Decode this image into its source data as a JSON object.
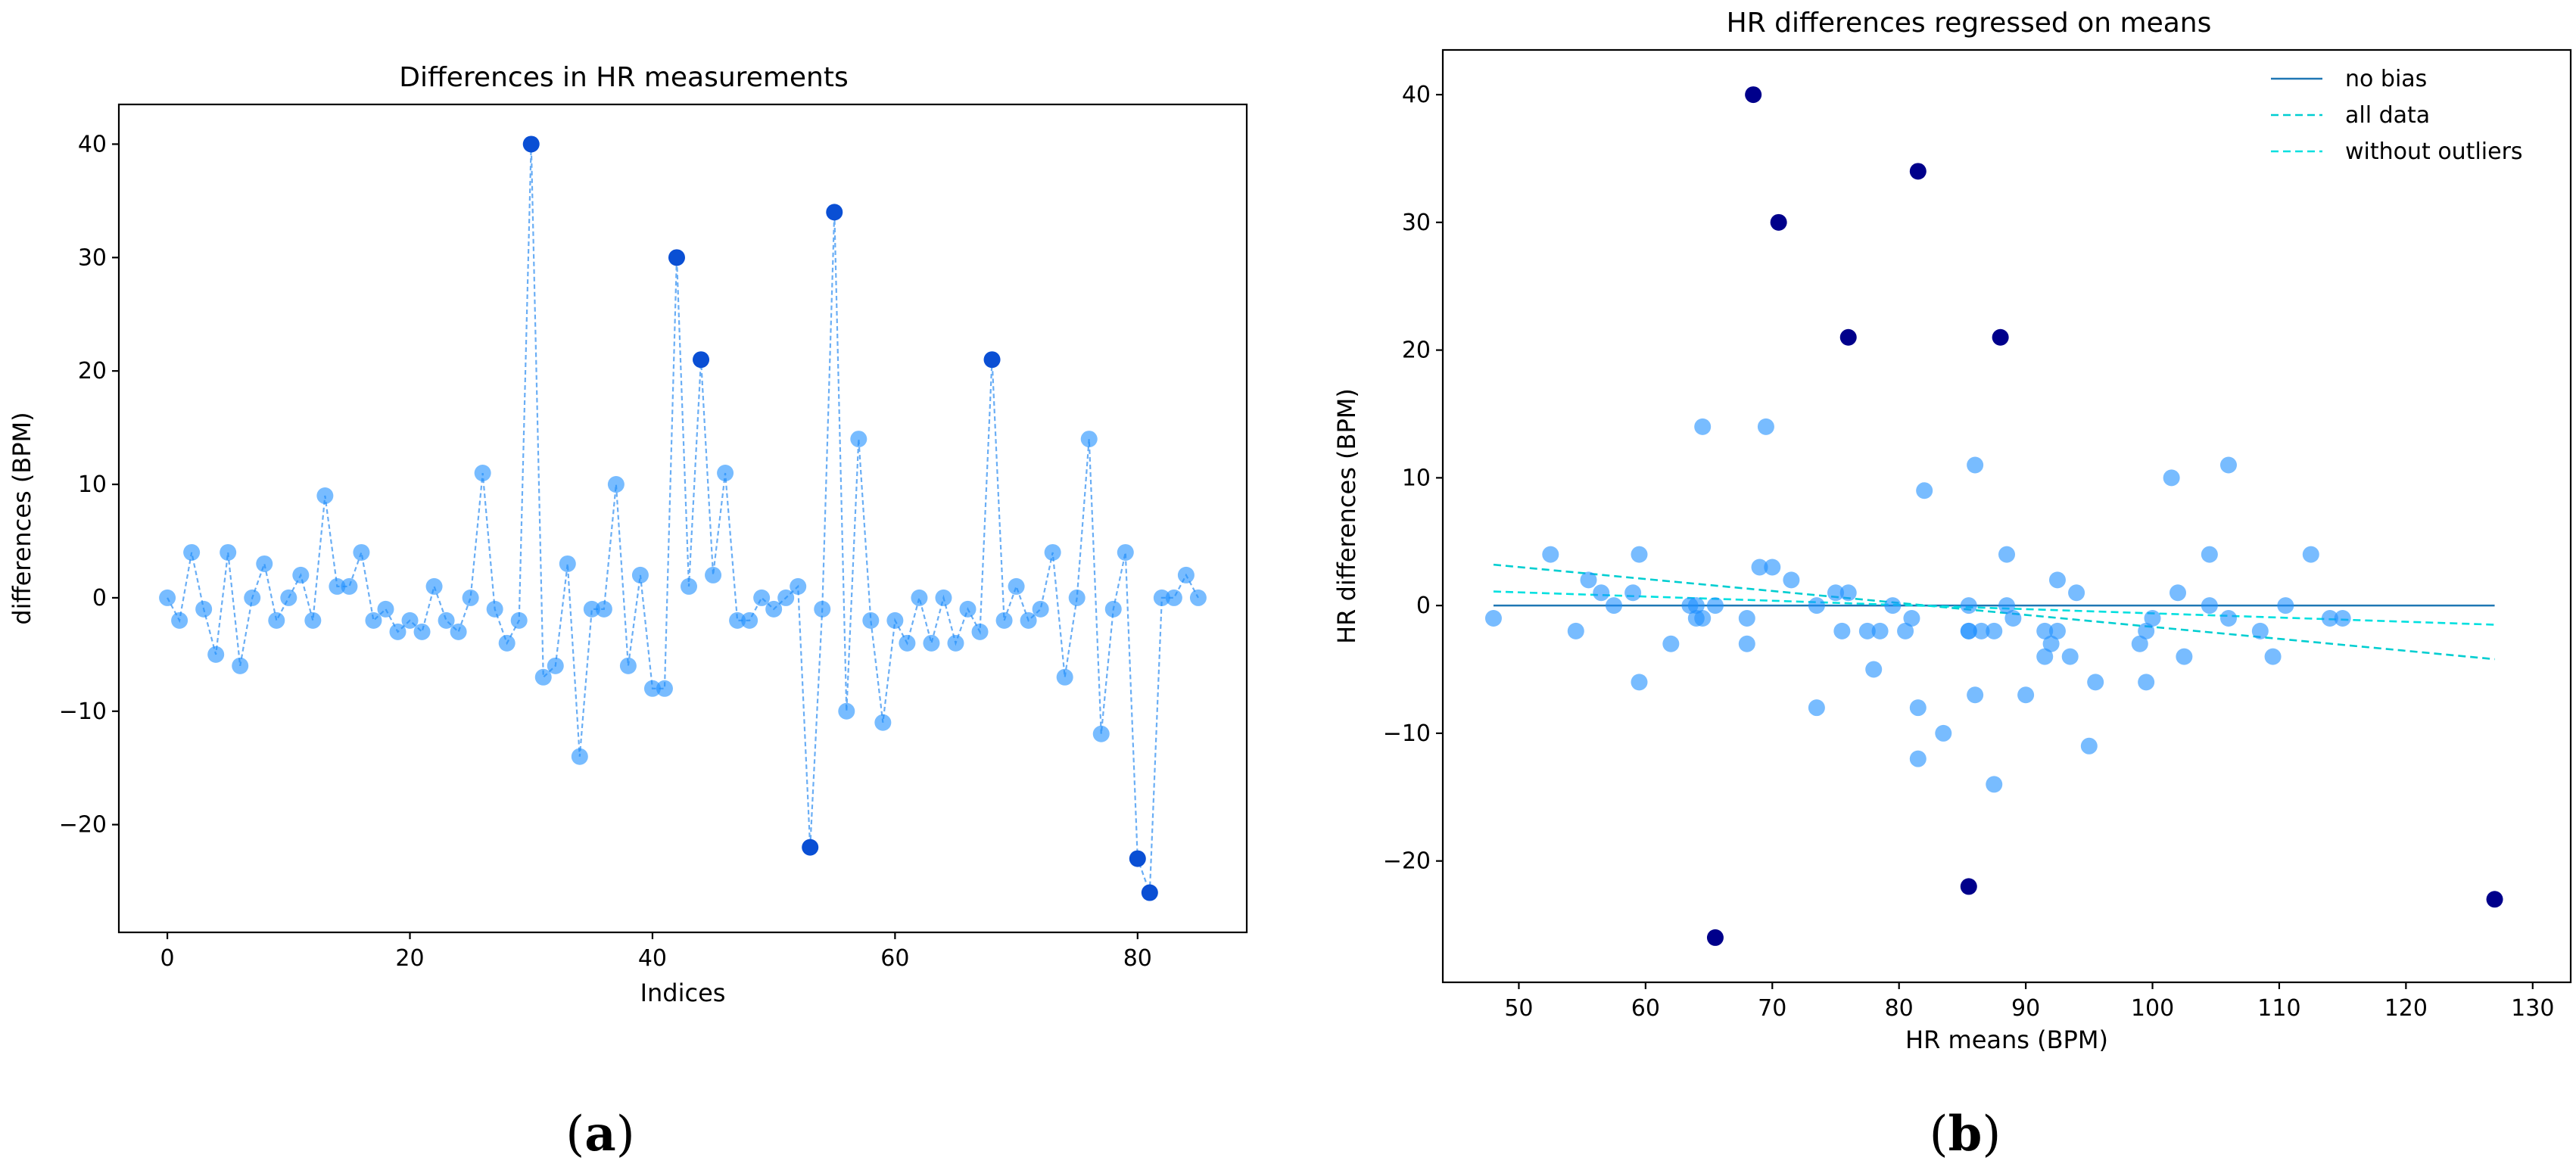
{
  "panel_labels": {
    "a": "(a)",
    "b": "(b)",
    "a_letter": "a",
    "b_letter": "b"
  },
  "colors": {
    "point": "#1e90ff",
    "point_highlight": "#0a4fd4",
    "outlier_b": "#00008b",
    "line_a": "#6aaef5",
    "no_bias": "#1f77b4",
    "all_data": "#00ced1",
    "without_outliers": "#00e0e0"
  },
  "chart_data": [
    {
      "type": "line",
      "title": "Differences in HR measurements",
      "xlabel": "Indices",
      "ylabel": "differences (BPM)",
      "xlim": [
        -4,
        89
      ],
      "ylim": [
        -29.5,
        43.5
      ],
      "xticks": [
        0,
        20,
        40,
        60,
        80
      ],
      "xtick_labels": [
        "0",
        "20",
        "40",
        "60",
        "80"
      ],
      "yticks": [
        -20,
        -10,
        0,
        10,
        20,
        30,
        40
      ],
      "ytick_labels": [
        "−20",
        "−10",
        "0",
        "10",
        "20",
        "30",
        "40"
      ],
      "x": [
        0,
        1,
        2,
        3,
        4,
        5,
        6,
        7,
        8,
        9,
        10,
        11,
        12,
        13,
        14,
        15,
        16,
        17,
        18,
        19,
        20,
        21,
        22,
        23,
        24,
        25,
        26,
        27,
        28,
        29,
        30,
        31,
        32,
        33,
        34,
        35,
        36,
        37,
        38,
        39,
        40,
        41,
        42,
        43,
        44,
        45,
        46,
        47,
        48,
        49,
        50,
        51,
        52,
        53,
        54,
        55,
        56,
        57,
        58,
        59,
        60,
        61,
        62,
        63,
        64,
        65,
        66,
        67,
        68,
        69,
        70,
        71,
        72,
        73,
        74,
        75,
        76,
        77,
        78,
        79,
        80,
        81,
        82,
        83,
        84,
        85
      ],
      "values": [
        0,
        -2,
        4,
        -1,
        -5,
        4,
        -6,
        0,
        3,
        -2,
        0,
        2,
        -2,
        9,
        1,
        1,
        4,
        -2,
        -1,
        -3,
        -2,
        -3,
        1,
        -2,
        -3,
        0,
        11,
        -1,
        -4,
        -2,
        40,
        -7,
        -6,
        3,
        -14,
        -1,
        -1,
        10,
        -6,
        2,
        -8,
        -8,
        30,
        1,
        21,
        2,
        11,
        -2,
        -2,
        0,
        -1,
        0,
        1,
        -22,
        -1,
        34,
        -10,
        14,
        -2,
        -11,
        -2,
        -4,
        0,
        -4,
        0,
        -4,
        -1,
        -3,
        21,
        -2,
        1,
        -2,
        -1,
        4,
        -7,
        0,
        14,
        -12,
        -1,
        4,
        -23,
        -26,
        0,
        0,
        2,
        0
      ],
      "highlight_indices": [
        30,
        42,
        44,
        53,
        55,
        68,
        80,
        81
      ]
    },
    {
      "type": "scatter",
      "title": "HR differences regressed on means",
      "xlabel": "HR means (BPM)",
      "ylabel": "HR differences (BPM)",
      "xlim": [
        44,
        133
      ],
      "ylim": [
        -29.5,
        43.5
      ],
      "xticks": [
        50,
        60,
        70,
        80,
        90,
        100,
        110,
        120,
        130
      ],
      "xtick_labels": [
        "50",
        "60",
        "70",
        "80",
        "90",
        "100",
        "110",
        "120",
        "130"
      ],
      "yticks": [
        -20,
        -10,
        0,
        10,
        20,
        30,
        40
      ],
      "ytick_labels": [
        "−20",
        "−10",
        "0",
        "10",
        "20",
        "30",
        "40"
      ],
      "points": [
        [
          48,
          -1
        ],
        [
          52.5,
          4
        ],
        [
          54.5,
          -2
        ],
        [
          55.5,
          2
        ],
        [
          56.5,
          1
        ],
        [
          57.5,
          0
        ],
        [
          59,
          1
        ],
        [
          59.5,
          4
        ],
        [
          59.5,
          -6
        ],
        [
          62,
          -3
        ],
        [
          63.5,
          0
        ],
        [
          64,
          -1
        ],
        [
          64,
          0
        ],
        [
          64.5,
          14
        ],
        [
          64.5,
          -1
        ],
        [
          65.5,
          0
        ],
        [
          68,
          -3
        ],
        [
          68,
          -1
        ],
        [
          69,
          3
        ],
        [
          69.5,
          14
        ],
        [
          70,
          3
        ],
        [
          71.5,
          2
        ],
        [
          73.5,
          0
        ],
        [
          73.5,
          -8
        ],
        [
          75,
          1
        ],
        [
          75.5,
          -2
        ],
        [
          76,
          1
        ],
        [
          77.5,
          -2
        ],
        [
          78,
          -5
        ],
        [
          78.5,
          -2
        ],
        [
          79.5,
          0
        ],
        [
          80.5,
          -2
        ],
        [
          81,
          -1
        ],
        [
          81.5,
          -8
        ],
        [
          81.5,
          -12
        ],
        [
          82,
          9
        ],
        [
          83.5,
          -10
        ],
        [
          85.5,
          0
        ],
        [
          85.5,
          -2
        ],
        [
          85.5,
          -2
        ],
        [
          86,
          11
        ],
        [
          86,
          -7
        ],
        [
          86.5,
          -2
        ],
        [
          87.5,
          -14
        ],
        [
          87.5,
          -2
        ],
        [
          88.5,
          4
        ],
        [
          88.5,
          0
        ],
        [
          89,
          -1
        ],
        [
          90,
          -7
        ],
        [
          91.5,
          -4
        ],
        [
          91.5,
          -2
        ],
        [
          92,
          -3
        ],
        [
          92.5,
          2
        ],
        [
          92.5,
          -2
        ],
        [
          93.5,
          -4
        ],
        [
          94,
          1
        ],
        [
          95,
          -11
        ],
        [
          95.5,
          -6
        ],
        [
          99,
          -3
        ],
        [
          99.5,
          -2
        ],
        [
          99.5,
          -6
        ],
        [
          100,
          -1
        ],
        [
          101.5,
          10
        ],
        [
          102,
          1
        ],
        [
          102.5,
          -4
        ],
        [
          104.5,
          4
        ],
        [
          104.5,
          0
        ],
        [
          106,
          11
        ],
        [
          106,
          -1
        ],
        [
          108.5,
          -2
        ],
        [
          109.5,
          -4
        ],
        [
          110.5,
          0
        ],
        [
          112.5,
          4
        ],
        [
          114,
          -1
        ],
        [
          115,
          -1
        ]
      ],
      "outliers": [
        [
          68.5,
          40
        ],
        [
          81.5,
          34
        ],
        [
          70.5,
          30
        ],
        [
          76,
          21
        ],
        [
          88,
          21
        ],
        [
          85.5,
          -22
        ],
        [
          65.5,
          -26
        ],
        [
          127,
          -23
        ]
      ],
      "lines": [
        {
          "name": "no bias",
          "style": "solid",
          "x": [
            48,
            127
          ],
          "y": [
            0,
            0
          ]
        },
        {
          "name": "all data",
          "style": "dashed",
          "x": [
            48,
            127
          ],
          "y": [
            3.2,
            -4.2
          ]
        },
        {
          "name": "without outliers",
          "style": "dashed",
          "x": [
            48,
            127
          ],
          "y": [
            1.1,
            -1.5
          ]
        }
      ],
      "legend": [
        "no bias",
        "all data",
        "without outliers"
      ],
      "legend_position": "top-right"
    }
  ]
}
